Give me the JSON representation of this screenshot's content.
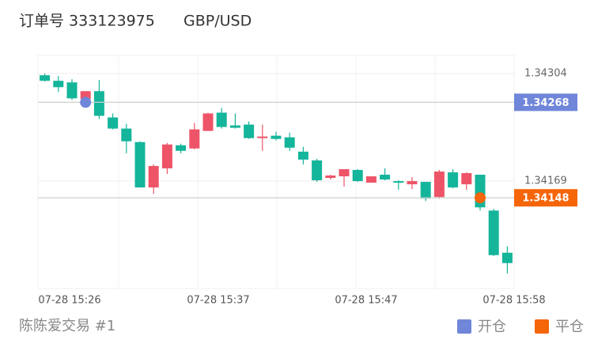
{
  "header": {
    "order_label": "订单号 333123975",
    "symbol": "GBP/USD"
  },
  "chart_data": {
    "type": "candlestick",
    "up_color": "#ee5468",
    "down_color": "#14b59b",
    "ylim": [
      1.34034,
      1.34327
    ],
    "yticks": [
      1.34169,
      1.34304
    ],
    "grid": true,
    "xticks": [
      "07-28 15:26",
      "07-28 15:37",
      "07-28 15:47",
      "07-28 15:58"
    ],
    "candles": {
      "open": [
        1.34302,
        1.34295,
        1.34293,
        1.34272,
        1.34282,
        1.34249,
        1.34235,
        1.34218,
        1.34161,
        1.34185,
        1.34214,
        1.3421,
        1.34232,
        1.34255,
        1.34239,
        1.3424,
        1.34223,
        1.34226,
        1.34224,
        1.34206,
        1.34195,
        1.34173,
        1.34175,
        1.34183,
        1.34167,
        1.34177,
        1.34169,
        1.34165,
        1.34168,
        1.34149,
        1.3418,
        1.34165,
        1.34177,
        1.34132,
        1.34079
      ],
      "high": [
        1.34304,
        1.34301,
        1.34297,
        1.34282,
        1.34296,
        1.34254,
        1.34241,
        1.34219,
        1.3419,
        1.34217,
        1.34216,
        1.34242,
        1.34255,
        1.34261,
        1.34254,
        1.34244,
        1.3424,
        1.34231,
        1.3423,
        1.34212,
        1.34197,
        1.34177,
        1.34184,
        1.34184,
        1.34175,
        1.34185,
        1.3417,
        1.34174,
        1.34168,
        1.34183,
        1.34184,
        1.3418,
        1.34177,
        1.34134,
        1.34087
      ],
      "low": [
        1.34294,
        1.34281,
        1.34271,
        1.34267,
        1.34247,
        1.34234,
        1.34204,
        1.34161,
        1.34153,
        1.34178,
        1.34204,
        1.34209,
        1.34232,
        1.34235,
        1.34235,
        1.34222,
        1.34207,
        1.3422,
        1.34207,
        1.3419,
        1.34168,
        1.34171,
        1.34162,
        1.34168,
        1.34167,
        1.3417,
        1.34158,
        1.34159,
        1.34144,
        1.34147,
        1.3416,
        1.34158,
        1.34132,
        1.34075,
        1.34053
      ],
      "close": [
        1.34295,
        1.34287,
        1.34273,
        1.34282,
        1.34251,
        1.34235,
        1.34219,
        1.34161,
        1.34188,
        1.34215,
        1.34207,
        1.34234,
        1.34254,
        1.34237,
        1.34236,
        1.34223,
        1.34225,
        1.34222,
        1.34211,
        1.34196,
        1.3417,
        1.34176,
        1.34184,
        1.34169,
        1.34175,
        1.34171,
        1.34167,
        1.34169,
        1.34147,
        1.34181,
        1.34161,
        1.34179,
        1.34136,
        1.34076,
        1.34066
      ]
    },
    "markers": [
      {
        "name": "开仓",
        "color": "#6f86d9",
        "index": 3,
        "price": 1.34268
      },
      {
        "name": "平仓",
        "color": "#f5650a",
        "index": 32,
        "price": 1.34148
      }
    ]
  },
  "footer": "陈陈爱交易 #1"
}
